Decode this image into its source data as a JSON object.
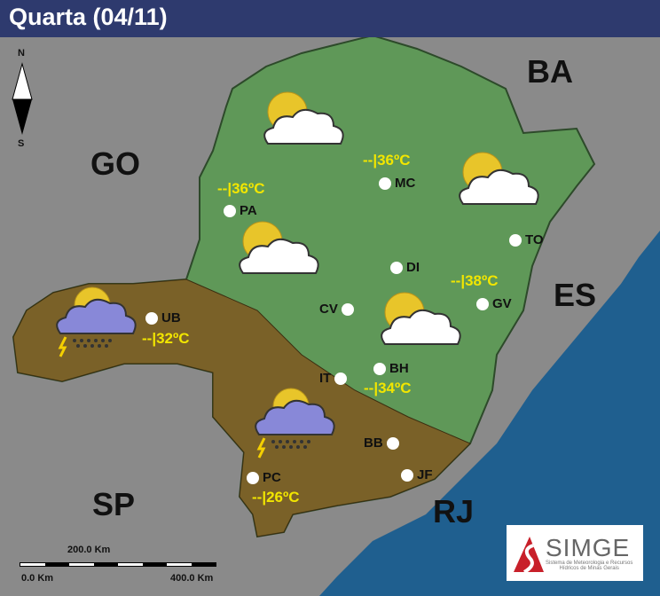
{
  "header": {
    "title": "Quarta (04/11)"
  },
  "compass": {
    "north": "N",
    "south": "S"
  },
  "states": [
    {
      "label": "BA"
    },
    {
      "label": "GO"
    },
    {
      "label": "ES"
    },
    {
      "label": "SP"
    },
    {
      "label": "RJ"
    }
  ],
  "cities": [
    {
      "label": "PA"
    },
    {
      "label": "MC"
    },
    {
      "label": "TO"
    },
    {
      "label": "DI"
    },
    {
      "label": "CV"
    },
    {
      "label": "GV"
    },
    {
      "label": "UB"
    },
    {
      "label": "BH"
    },
    {
      "label": "IT"
    },
    {
      "label": "BB"
    },
    {
      "label": "JF"
    },
    {
      "label": "PC"
    }
  ],
  "temps": [
    {
      "label": "--|36ºC"
    },
    {
      "label": "--|36ºC"
    },
    {
      "label": "--|38ºC"
    },
    {
      "label": "--|32ºC"
    },
    {
      "label": "--|34ºC"
    },
    {
      "label": "--|26ºC"
    }
  ],
  "forecast_icons": [
    "partly-cloudy-icon",
    "partly-cloudy-icon",
    "partly-cloudy-icon",
    "storm-icon",
    "partly-cloudy-icon",
    "storm-icon"
  ],
  "region_colors": {
    "north": "#5f9858",
    "south": "#7a6128",
    "ocean": "#1f5f8f"
  },
  "scale": {
    "mid": "200.0 Km",
    "start": "0.0 Km",
    "end": "400.0 Km"
  },
  "logo": {
    "name": "SIMGE",
    "subtitle1": "Sistema de Meteorologia e Recursos",
    "subtitle2": "Hídricos de Minas Gerais"
  }
}
